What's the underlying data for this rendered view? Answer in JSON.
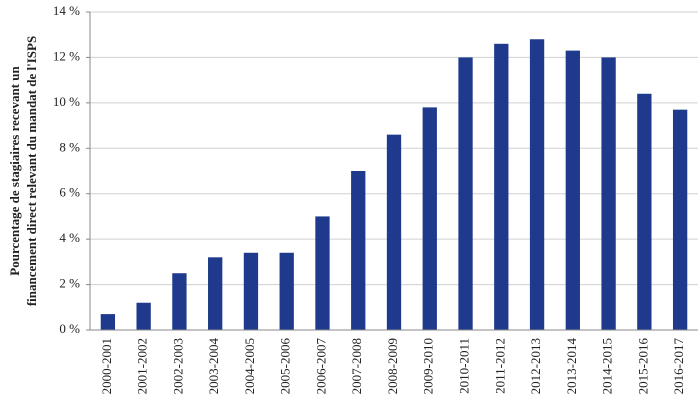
{
  "chart_data": {
    "type": "bar",
    "ylabel": [
      "Pourcentage de stagiaires recevant un",
      "financement direct relevant du mandat de l'ISPS"
    ],
    "categories": [
      "2000-2001",
      "2001-2002",
      "2002-2003",
      "2003-2004",
      "2004-2005",
      "2005-2006",
      "2006-2007",
      "2007-2008",
      "2008-2009",
      "2009-2010",
      "2010-2011",
      "2011-2012",
      "2012-2013",
      "2013-2014",
      "2014-2015",
      "2015-2016",
      "2016-2017"
    ],
    "values": [
      0.7,
      1.2,
      2.5,
      3.2,
      3.4,
      3.4,
      5.0,
      7.0,
      8.6,
      9.8,
      12.0,
      12.6,
      12.8,
      12.3,
      12.0,
      10.4,
      9.7
    ],
    "color": "#1f3a8c",
    "ylim": [
      0,
      14
    ],
    "yticks": [
      {
        "value": 0,
        "label": "0 %"
      },
      {
        "value": 2,
        "label": "2 %"
      },
      {
        "value": 4,
        "label": "4 %"
      },
      {
        "value": 6,
        "label": "6 %"
      },
      {
        "value": 8,
        "label": "8 %"
      },
      {
        "value": 10,
        "label": "10 %"
      },
      {
        "value": 12,
        "label": "12 %"
      },
      {
        "value": 14,
        "label": "14 %"
      }
    ],
    "grid": true
  }
}
